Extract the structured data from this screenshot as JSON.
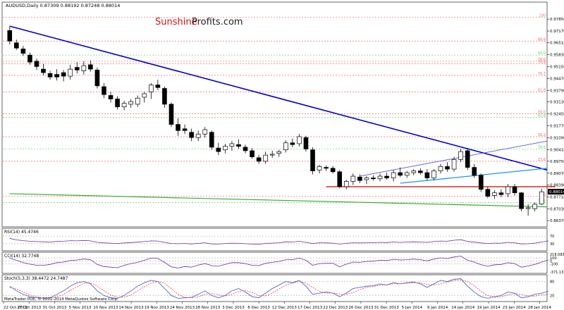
{
  "header": {
    "symbol_line": "AUDUSD,Daily  0.87309 0.88192 0.87248 0.88014",
    "brand_part1": "Sunshine",
    "brand_part2": "Profits.com",
    "footer": "MetaTrader PDE, © 2001-2014 MetaQuotes Software Corp."
  },
  "colors": {
    "bull_fill": "#ffffff",
    "bear_fill": "#000000",
    "downtrend_line": "#0000cc",
    "channel_upper": "#5555dd",
    "channel_lower": "#1e90ff",
    "support_green": "#33aa33",
    "resistance_red": "#cc0000",
    "fib_red": "#ff6666",
    "fib_green": "#66cc66",
    "indicator_main": "#6a2fa0",
    "stoch_signal": "#ff3333",
    "stoch_main": "#3355cc",
    "current_price_box": "#000000"
  },
  "chart_data": [
    {
      "type": "candlestick",
      "title": "AUDUSD,Daily",
      "ohlc_label": "0.87309 0.88192 0.87248 0.88014",
      "ylim": [
        0.8605,
        0.9878
      ],
      "y_ticks": [
        "0.97850",
        "0.97170",
        "0.96510",
        "0.95830",
        "0.95150",
        "0.94470",
        "0.93790",
        "0.93130",
        "0.92450",
        "0.91770",
        "0.91090",
        "0.90410",
        "0.89750",
        "0.89070",
        "0.88390",
        "0.87710",
        "0.87030",
        "0.86370"
      ],
      "current_price": "0.88014",
      "x_ticks": [
        "22 Oct 2013",
        "27 Oct 2013",
        "31 Oct 2013",
        "5 Nov 2013",
        "10 Nov 2013",
        "14 Nov 2013",
        "19 Nov 2013",
        "24 Nov 2013",
        "28 Nov 2013",
        "3 Dec 2013",
        "8 Dec 2013",
        "12 Dec 2013",
        "17 Dec 2013",
        "22 Dec 2013",
        "26 Dec 2013",
        "31 Dec 2013",
        "5 Jan 2014",
        "9 Jan 2014",
        "14 Jan 2014",
        "19 Jan 2014",
        "23 Jan 2014",
        "28 Jan 2014"
      ],
      "candles": [
        {
          "o": 0.972,
          "h": 0.9745,
          "l": 0.964,
          "c": 0.966
        },
        {
          "o": 0.965,
          "h": 0.9668,
          "l": 0.961,
          "c": 0.962
        },
        {
          "o": 0.9615,
          "h": 0.9632,
          "l": 0.9575,
          "c": 0.959
        },
        {
          "o": 0.958,
          "h": 0.9595,
          "l": 0.9525,
          "c": 0.954
        },
        {
          "o": 0.9545,
          "h": 0.956,
          "l": 0.9495,
          "c": 0.9515
        },
        {
          "o": 0.95,
          "h": 0.953,
          "l": 0.9465,
          "c": 0.948
        },
        {
          "o": 0.9475,
          "h": 0.949,
          "l": 0.944,
          "c": 0.9455
        },
        {
          "o": 0.947,
          "h": 0.95,
          "l": 0.9435,
          "c": 0.9455
        },
        {
          "o": 0.948,
          "h": 0.9495,
          "l": 0.943,
          "c": 0.946
        },
        {
          "o": 0.946,
          "h": 0.9525,
          "l": 0.944,
          "c": 0.95
        },
        {
          "o": 0.951,
          "h": 0.954,
          "l": 0.9475,
          "c": 0.9495
        },
        {
          "o": 0.949,
          "h": 0.9545,
          "l": 0.947,
          "c": 0.952
        },
        {
          "o": 0.9525,
          "h": 0.955,
          "l": 0.9485,
          "c": 0.95
        },
        {
          "o": 0.9495,
          "h": 0.951,
          "l": 0.939,
          "c": 0.9405
        },
        {
          "o": 0.94,
          "h": 0.942,
          "l": 0.9335,
          "c": 0.9355
        },
        {
          "o": 0.935,
          "h": 0.937,
          "l": 0.931,
          "c": 0.933
        },
        {
          "o": 0.933,
          "h": 0.9345,
          "l": 0.927,
          "c": 0.9285
        },
        {
          "o": 0.9285,
          "h": 0.932,
          "l": 0.9265,
          "c": 0.9305
        },
        {
          "o": 0.93,
          "h": 0.933,
          "l": 0.928,
          "c": 0.9315
        },
        {
          "o": 0.93,
          "h": 0.935,
          "l": 0.9285,
          "c": 0.9335
        },
        {
          "o": 0.934,
          "h": 0.937,
          "l": 0.931,
          "c": 0.936
        },
        {
          "o": 0.937,
          "h": 0.942,
          "l": 0.933,
          "c": 0.941
        },
        {
          "o": 0.941,
          "h": 0.944,
          "l": 0.938,
          "c": 0.9395
        },
        {
          "o": 0.939,
          "h": 0.94,
          "l": 0.928,
          "c": 0.93
        },
        {
          "o": 0.93,
          "h": 0.931,
          "l": 0.917,
          "c": 0.9185
        },
        {
          "o": 0.9185,
          "h": 0.922,
          "l": 0.912,
          "c": 0.915
        },
        {
          "o": 0.916,
          "h": 0.9185,
          "l": 0.913,
          "c": 0.915
        },
        {
          "o": 0.914,
          "h": 0.916,
          "l": 0.909,
          "c": 0.911
        },
        {
          "o": 0.911,
          "h": 0.915,
          "l": 0.909,
          "c": 0.913
        },
        {
          "o": 0.913,
          "h": 0.917,
          "l": 0.911,
          "c": 0.9155
        },
        {
          "o": 0.914,
          "h": 0.915,
          "l": 0.904,
          "c": 0.9055
        },
        {
          "o": 0.905,
          "h": 0.908,
          "l": 0.901,
          "c": 0.903
        },
        {
          "o": 0.904,
          "h": 0.9075,
          "l": 0.902,
          "c": 0.906
        },
        {
          "o": 0.906,
          "h": 0.909,
          "l": 0.9035,
          "c": 0.9075
        },
        {
          "o": 0.907,
          "h": 0.91,
          "l": 0.9045,
          "c": 0.906
        },
        {
          "o": 0.9055,
          "h": 0.907,
          "l": 0.902,
          "c": 0.9035
        },
        {
          "o": 0.9035,
          "h": 0.905,
          "l": 0.899,
          "c": 0.9
        },
        {
          "o": 0.8995,
          "h": 0.901,
          "l": 0.896,
          "c": 0.8975
        },
        {
          "o": 0.8975,
          "h": 0.903,
          "l": 0.896,
          "c": 0.901
        },
        {
          "o": 0.901,
          "h": 0.9035,
          "l": 0.8995,
          "c": 0.9015
        },
        {
          "o": 0.902,
          "h": 0.904,
          "l": 0.9,
          "c": 0.903
        },
        {
          "o": 0.904,
          "h": 0.9095,
          "l": 0.9025,
          "c": 0.908
        },
        {
          "o": 0.908,
          "h": 0.9105,
          "l": 0.9055,
          "c": 0.907
        },
        {
          "o": 0.9075,
          "h": 0.913,
          "l": 0.906,
          "c": 0.9115
        },
        {
          "o": 0.911,
          "h": 0.912,
          "l": 0.903,
          "c": 0.9045
        },
        {
          "o": 0.904,
          "h": 0.9055,
          "l": 0.89,
          "c": 0.892
        },
        {
          "o": 0.8925,
          "h": 0.8955,
          "l": 0.8905,
          "c": 0.8945
        },
        {
          "o": 0.894,
          "h": 0.895,
          "l": 0.892,
          "c": 0.8935
        },
        {
          "o": 0.8935,
          "h": 0.8948,
          "l": 0.8905,
          "c": 0.8915
        },
        {
          "o": 0.8915,
          "h": 0.8925,
          "l": 0.882,
          "c": 0.883
        },
        {
          "o": 0.883,
          "h": 0.887,
          "l": 0.8815,
          "c": 0.886
        },
        {
          "o": 0.886,
          "h": 0.8905,
          "l": 0.884,
          "c": 0.889
        },
        {
          "o": 0.8885,
          "h": 0.89,
          "l": 0.885,
          "c": 0.8865
        },
        {
          "o": 0.887,
          "h": 0.889,
          "l": 0.8845,
          "c": 0.888
        },
        {
          "o": 0.888,
          "h": 0.8895,
          "l": 0.8865,
          "c": 0.8875
        },
        {
          "o": 0.8875,
          "h": 0.8905,
          "l": 0.886,
          "c": 0.889
        },
        {
          "o": 0.889,
          "h": 0.891,
          "l": 0.887,
          "c": 0.888
        },
        {
          "o": 0.888,
          "h": 0.8925,
          "l": 0.886,
          "c": 0.891
        },
        {
          "o": 0.891,
          "h": 0.894,
          "l": 0.8885,
          "c": 0.8895
        },
        {
          "o": 0.8895,
          "h": 0.892,
          "l": 0.888,
          "c": 0.891
        },
        {
          "o": 0.891,
          "h": 0.893,
          "l": 0.8895,
          "c": 0.892
        },
        {
          "o": 0.892,
          "h": 0.8935,
          "l": 0.89,
          "c": 0.891
        },
        {
          "o": 0.891,
          "h": 0.893,
          "l": 0.8865,
          "c": 0.888
        },
        {
          "o": 0.888,
          "h": 0.893,
          "l": 0.8865,
          "c": 0.892
        },
        {
          "o": 0.892,
          "h": 0.896,
          "l": 0.8905,
          "c": 0.8945
        },
        {
          "o": 0.8945,
          "h": 0.897,
          "l": 0.8915,
          "c": 0.893
        },
        {
          "o": 0.893,
          "h": 0.9,
          "l": 0.8915,
          "c": 0.8985
        },
        {
          "o": 0.8985,
          "h": 0.9045,
          "l": 0.897,
          "c": 0.903
        },
        {
          "o": 0.9035,
          "h": 0.905,
          "l": 0.8925,
          "c": 0.894
        },
        {
          "o": 0.894,
          "h": 0.896,
          "l": 0.888,
          "c": 0.8895
        },
        {
          "o": 0.8895,
          "h": 0.8905,
          "l": 0.88,
          "c": 0.8815
        },
        {
          "o": 0.8815,
          "h": 0.883,
          "l": 0.8765,
          "c": 0.8775
        },
        {
          "o": 0.878,
          "h": 0.881,
          "l": 0.876,
          "c": 0.8795
        },
        {
          "o": 0.8795,
          "h": 0.8815,
          "l": 0.877,
          "c": 0.8785
        },
        {
          "o": 0.879,
          "h": 0.8845,
          "l": 0.877,
          "c": 0.883
        },
        {
          "o": 0.883,
          "h": 0.8845,
          "l": 0.878,
          "c": 0.8795
        },
        {
          "o": 0.8795,
          "h": 0.88,
          "l": 0.869,
          "c": 0.8705
        },
        {
          "o": 0.8705,
          "h": 0.873,
          "l": 0.8665,
          "c": 0.871
        },
        {
          "o": 0.8705,
          "h": 0.874,
          "l": 0.869,
          "c": 0.873
        },
        {
          "o": 0.8731,
          "h": 0.8819,
          "l": 0.8725,
          "c": 0.8801
        }
      ],
      "fibonacci_levels": [
        {
          "label": "100",
          "value": 0.9795,
          "color": "red"
        },
        {
          "label": "88.6",
          "value": 0.966,
          "color": "red"
        },
        {
          "label": "50.0",
          "value": 0.958,
          "color": "green"
        },
        {
          "label": "78.6",
          "value": 0.9545,
          "color": "red"
        },
        {
          "label": "76.4",
          "value": 0.953,
          "color": "red"
        },
        {
          "label": "70.7",
          "value": 0.9465,
          "color": "red"
        },
        {
          "label": "61.8",
          "value": 0.937,
          "color": "red"
        },
        {
          "label": "50.0",
          "value": 0.9245,
          "color": "red"
        },
        {
          "label": "61.8",
          "value": 0.9225,
          "color": "green"
        },
        {
          "label": "38.2",
          "value": 0.9115,
          "color": "red"
        },
        {
          "label": "78.6",
          "value": 0.9045,
          "color": "green"
        },
        {
          "label": "23.6",
          "value": 0.8975,
          "color": "red"
        },
        {
          "label": "0.0",
          "value": 0.8775,
          "color": "red"
        },
        {
          "label": "78.6",
          "value": 0.874,
          "color": "green"
        }
      ],
      "horizontal_lines": [
        {
          "name": "resistance-line",
          "value": 0.883,
          "from_bar": 47,
          "to_bar": 81
        }
      ],
      "trend_lines": [
        {
          "name": "downtrend-line",
          "from": [
            0,
            0.9745
          ],
          "to": [
            81,
            0.8925
          ]
        },
        {
          "name": "channel-upper-line",
          "from": [
            52,
            0.889
          ],
          "to": [
            81,
            0.909
          ]
        },
        {
          "name": "channel-lower-line",
          "from": [
            58,
            0.885
          ],
          "to": [
            81,
            0.8935
          ]
        },
        {
          "name": "support-line-green",
          "from": [
            0,
            0.879
          ],
          "to": [
            81,
            0.8715
          ]
        }
      ]
    },
    {
      "type": "line",
      "title": "RSI(14) 45.4746",
      "ylim": [
        0,
        100
      ],
      "y_ticks": [
        "70",
        "30"
      ],
      "series": [
        {
          "name": "RSI(14)",
          "values": [
            58,
            50,
            46,
            43,
            41,
            40,
            39,
            42,
            43,
            46,
            45,
            47,
            45,
            37,
            34,
            33,
            31,
            34,
            36,
            38,
            41,
            45,
            44,
            37,
            31,
            30,
            31,
            29,
            32,
            35,
            29,
            28,
            31,
            33,
            32,
            30,
            28,
            27,
            32,
            33,
            35,
            40,
            39,
            43,
            37,
            31,
            35,
            34,
            33,
            28,
            32,
            35,
            34,
            35,
            35,
            37,
            36,
            39,
            37,
            39,
            40,
            39,
            37,
            41,
            44,
            43,
            48,
            51,
            42,
            38,
            34,
            31,
            33,
            33,
            37,
            35,
            29,
            30,
            33,
            39,
            45
          ]
        }
      ]
    },
    {
      "type": "line",
      "title": "CCI(14) 32.7748",
      "y_ticks": [
        "218.0839",
        "100",
        "0",
        "-100",
        "-371.1331"
      ],
      "ylim": [
        -371.1331,
        218.0839
      ],
      "series": [
        {
          "name": "CCI(14)",
          "values": [
            90,
            20,
            -60,
            -110,
            -150,
            -150,
            -120,
            -60,
            -40,
            10,
            30,
            60,
            40,
            -120,
            -190,
            -210,
            -230,
            -150,
            -90,
            -50,
            20,
            90,
            80,
            -50,
            -200,
            -240,
            -190,
            -210,
            -140,
            -90,
            -160,
            -180,
            -120,
            -60,
            -60,
            -90,
            -150,
            -160,
            -80,
            -50,
            -20,
            40,
            40,
            90,
            20,
            -150,
            -90,
            -80,
            -80,
            -200,
            -110,
            -40,
            -50,
            -20,
            -10,
            20,
            10,
            50,
            30,
            40,
            60,
            40,
            0,
            60,
            100,
            80,
            130,
            160,
            20,
            -40,
            -130,
            -180,
            -130,
            -120,
            -60,
            -90,
            -210,
            -170,
            -120,
            -40,
            30
          ]
        }
      ]
    },
    {
      "type": "line",
      "title": "Stoch(5,3,3) 38.4472 24.7487",
      "ylim": [
        0,
        100
      ],
      "y_ticks": [
        "80",
        "20"
      ],
      "series": [
        {
          "name": "main",
          "values": [
            60,
            40,
            25,
            15,
            10,
            8,
            10,
            25,
            40,
            60,
            75,
            80,
            70,
            40,
            20,
            10,
            8,
            20,
            40,
            60,
            75,
            85,
            80,
            50,
            20,
            8,
            10,
            12,
            25,
            40,
            20,
            10,
            20,
            40,
            50,
            35,
            15,
            10,
            30,
            50,
            65,
            80,
            75,
            85,
            60,
            25,
            30,
            35,
            30,
            15,
            30,
            50,
            55,
            60,
            62,
            70,
            65,
            75,
            70,
            75,
            78,
            70,
            55,
            70,
            85,
            80,
            90,
            92,
            60,
            35,
            15,
            8,
            15,
            20,
            35,
            30,
            10,
            15,
            25,
            30,
            38
          ]
        },
        {
          "name": "signal",
          "values": [
            55,
            48,
            35,
            22,
            15,
            10,
            9,
            15,
            25,
            42,
            58,
            72,
            75,
            60,
            40,
            22,
            12,
            12,
            22,
            40,
            58,
            73,
            80,
            72,
            50,
            25,
            12,
            10,
            15,
            25,
            28,
            23,
            18,
            25,
            37,
            42,
            33,
            20,
            18,
            30,
            48,
            65,
            73,
            80,
            73,
            55,
            38,
            30,
            31,
            26,
            25,
            32,
            45,
            55,
            59,
            64,
            66,
            70,
            70,
            73,
            75,
            74,
            68,
            65,
            70,
            78,
            85,
            87,
            80,
            62,
            38,
            20,
            12,
            14,
            23,
            28,
            25,
            18,
            17,
            23,
            24.7
          ]
        }
      ]
    }
  ]
}
